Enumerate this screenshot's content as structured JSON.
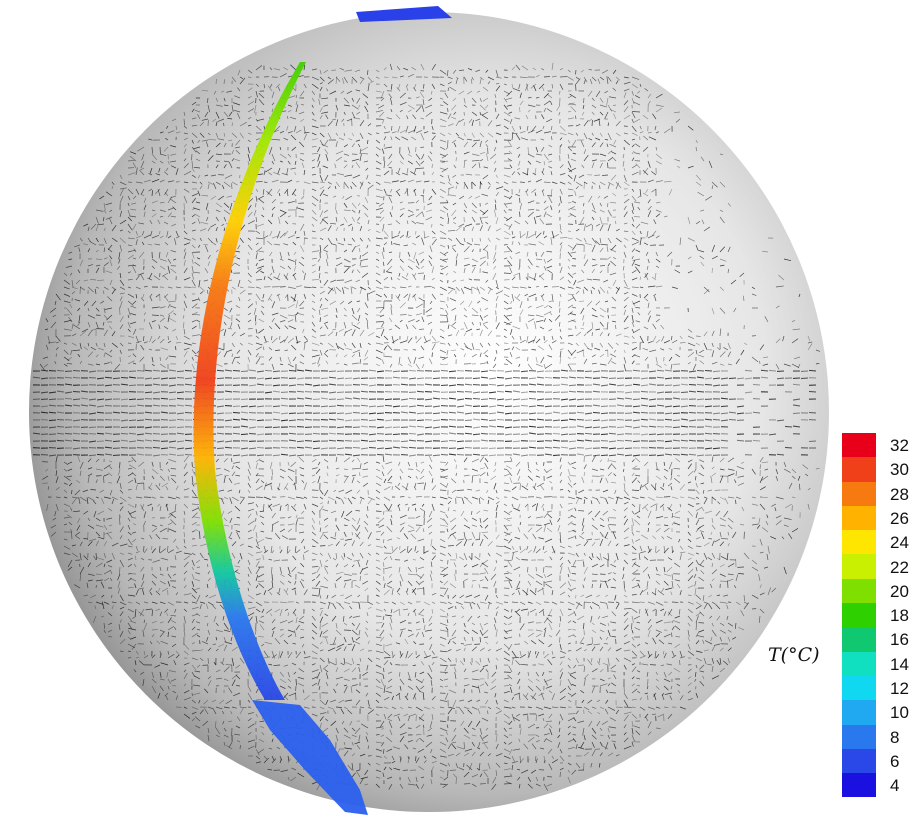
{
  "figure": {
    "variable_label": "T(°C)",
    "colorbar": {
      "ticks": [
        "32",
        "30",
        "28",
        "26",
        "24",
        "22",
        "20",
        "18",
        "16",
        "14",
        "12",
        "10",
        "8",
        "6",
        "4"
      ],
      "colors": [
        "#e8001a",
        "#f0401a",
        "#f77a10",
        "#ffb300",
        "#ffe600",
        "#c8f000",
        "#7fe000",
        "#2fd000",
        "#10c870",
        "#10e0c0",
        "#10d8f0",
        "#20a8f0",
        "#2a78ee",
        "#2a48e8",
        "#1a10e0"
      ]
    },
    "globe": {
      "shading_light": "#ffffff",
      "shading_dark": "#707070",
      "vector_color": "#111111"
    }
  }
}
